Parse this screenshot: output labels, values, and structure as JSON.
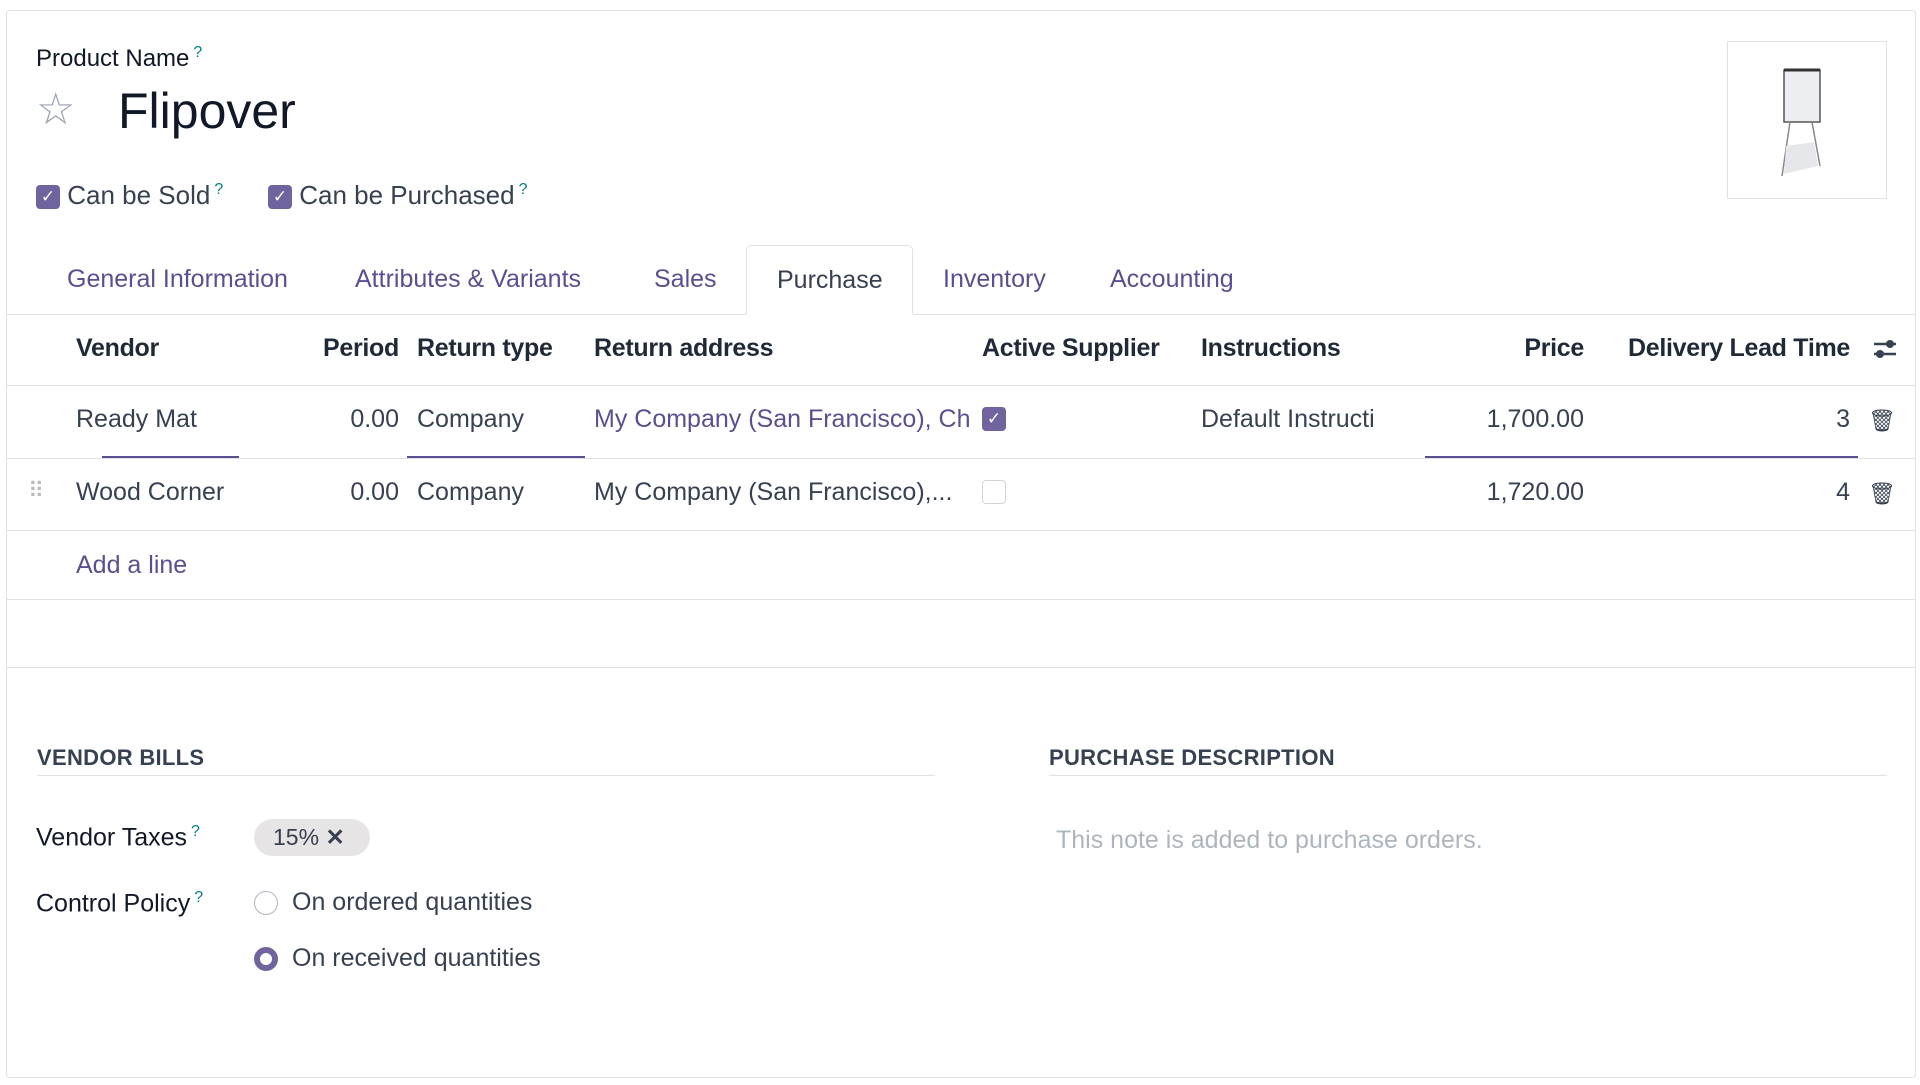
{
  "product": {
    "name_label": "Product Name",
    "name": "Flipover",
    "can_be_sold_label": "Can be Sold",
    "can_be_sold": true,
    "can_be_purchased_label": "Can be Purchased",
    "can_be_purchased": true,
    "help_mark": "?"
  },
  "tabs": [
    {
      "label": "General Information"
    },
    {
      "label": "Attributes & Variants"
    },
    {
      "label": "Sales"
    },
    {
      "label": "Purchase",
      "active": true
    },
    {
      "label": "Inventory"
    },
    {
      "label": "Accounting"
    }
  ],
  "vendor_table": {
    "headers": [
      "Vendor",
      "Period",
      "Return type",
      "Return address",
      "Active Supplier",
      "Instructions",
      "Price",
      "Delivery Lead Time"
    ],
    "rows": [
      {
        "vendor": "Ready Mat",
        "period": "0.00",
        "return_type": "Company",
        "return_address": "My Company (San Francisco), Ch",
        "active": true,
        "instructions": "Default Instructi",
        "price": "1,700.00",
        "lead_time": "3"
      },
      {
        "vendor": "Wood Corner",
        "period": "0.00",
        "return_type": "Company",
        "return_address": "My Company (San Francisco),...",
        "active": false,
        "instructions": "",
        "price": "1,720.00",
        "lead_time": "4"
      }
    ],
    "add_line": "Add a line"
  },
  "vendor_bills": {
    "title": "VENDOR BILLS",
    "taxes_label": "Vendor Taxes",
    "tax_tag": "15%",
    "control_policy_label": "Control Policy",
    "options": [
      {
        "label": "On ordered quantities",
        "selected": false
      },
      {
        "label": "On received quantities",
        "selected": true
      }
    ]
  },
  "purchase_description": {
    "title": "PURCHASE DESCRIPTION",
    "placeholder": "This note is added to purchase orders."
  },
  "colors": {
    "accent": "#71639e",
    "link": "#5c4f8f",
    "help": "#017e84"
  }
}
